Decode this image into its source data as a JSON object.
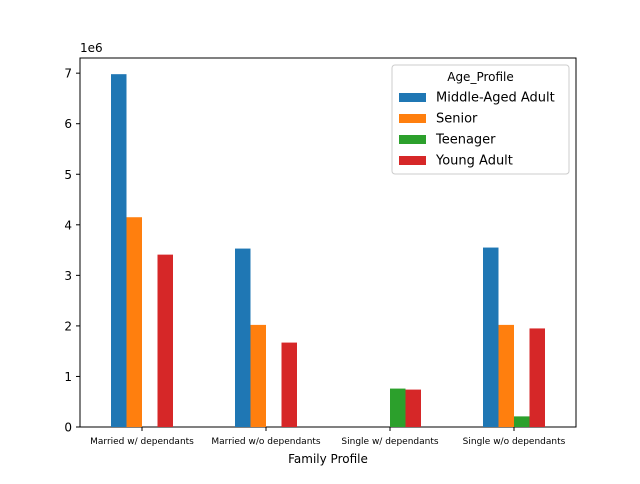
{
  "chart_data": {
    "type": "bar",
    "title": "",
    "xlabel": "Family Profile",
    "ylabel": "",
    "y_scale_label": "1e6",
    "ylim": [
      0,
      7300000
    ],
    "y_ticks": [
      0,
      1000000,
      2000000,
      3000000,
      4000000,
      5000000,
      6000000,
      7000000
    ],
    "y_tick_labels": [
      "0",
      "1",
      "2",
      "3",
      "4",
      "5",
      "6",
      "7"
    ],
    "categories": [
      "Married w/ dependants",
      "Married w/o dependants",
      "Single w/ dependants",
      "Single w/o dependants"
    ],
    "legend": {
      "title": "Age_Profile",
      "placement": "upper-right"
    },
    "grid": false,
    "series": [
      {
        "name": "Middle-Aged Adult",
        "color": "#1f77b4",
        "values": [
          6980000,
          3530000,
          0,
          3550000
        ]
      },
      {
        "name": "Senior",
        "color": "#ff7f0e",
        "values": [
          4150000,
          2020000,
          0,
          2020000
        ]
      },
      {
        "name": "Teenager",
        "color": "#2ca02c",
        "values": [
          0,
          0,
          760000,
          210000
        ]
      },
      {
        "name": "Young Adult",
        "color": "#d62728",
        "values": [
          3410000,
          1670000,
          740000,
          1950000
        ]
      }
    ]
  }
}
